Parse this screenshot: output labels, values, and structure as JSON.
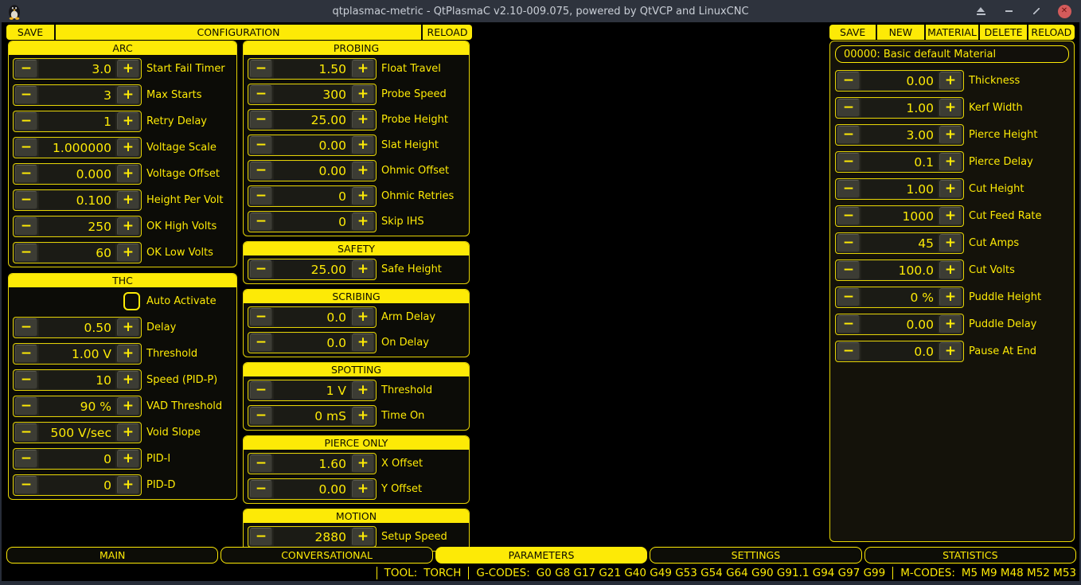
{
  "window": {
    "title": "qtplasmac-metric - QtPlasmaC v2.10-009.075, powered by QtVCP and LinuxCNC",
    "controls": [
      "shade",
      "minimize",
      "maximize",
      "close"
    ]
  },
  "colors": {
    "accent": "#fdea06",
    "titlebar": "#2e333d",
    "close_button": "#d35b5b",
    "background": "#000000"
  },
  "config_bar": {
    "save": "SAVE",
    "title": "CONFIGURATION",
    "reload": "RELOAD"
  },
  "material_bar": {
    "buttons": [
      "SAVE",
      "NEW",
      "MATERIAL",
      "DELETE",
      "RELOAD"
    ]
  },
  "materials": {
    "selected": "00000: Basic default Material",
    "fields": [
      {
        "value": "0.00",
        "label": "Thickness"
      },
      {
        "value": "1.00",
        "label": "Kerf Width"
      },
      {
        "value": "3.00",
        "label": "Pierce Height"
      },
      {
        "value": "0.1",
        "label": "Pierce Delay"
      },
      {
        "value": "1.00",
        "label": "Cut Height"
      },
      {
        "value": "1000",
        "label": "Cut Feed Rate"
      },
      {
        "value": "45",
        "label": "Cut Amps"
      },
      {
        "value": "100.0",
        "label": "Cut Volts"
      },
      {
        "value": "0 %",
        "label": "Puddle Height"
      },
      {
        "value": "0.00",
        "label": "Puddle Delay"
      },
      {
        "value": "0.0",
        "label": "Pause At End"
      }
    ]
  },
  "panels": {
    "left": [
      {
        "title": "ARC",
        "rows": [
          {
            "value": "3.0",
            "label": "Start Fail Timer"
          },
          {
            "value": "3",
            "label": "Max Starts"
          },
          {
            "value": "1",
            "label": "Retry Delay"
          },
          {
            "value": "1.000000",
            "label": "Voltage Scale"
          },
          {
            "value": "0.000",
            "label": "Voltage Offset"
          },
          {
            "value": "0.100",
            "label": "Height Per Volt"
          },
          {
            "value": "250",
            "label": "OK High Volts"
          },
          {
            "value": "60",
            "label": "OK Low Volts"
          }
        ]
      },
      {
        "title": "THC",
        "rows": [
          {
            "type": "checkbox",
            "checked": false,
            "label": "Auto Activate"
          },
          {
            "value": "0.50",
            "label": "Delay"
          },
          {
            "value": "1.00 V",
            "label": "Threshold"
          },
          {
            "value": "10",
            "label": "Speed (PID-P)"
          },
          {
            "value": "90 %",
            "label": "VAD Threshold"
          },
          {
            "value": "500 V/sec",
            "label": "Void Slope"
          },
          {
            "value": "0",
            "label": "PID-I"
          },
          {
            "value": "0",
            "label": "PID-D"
          }
        ]
      }
    ],
    "middle": [
      {
        "title": "PROBING",
        "rows": [
          {
            "value": "1.50",
            "label": "Float Travel"
          },
          {
            "value": "300",
            "label": "Probe Speed"
          },
          {
            "value": "25.00",
            "label": "Probe Height"
          },
          {
            "value": "0.00",
            "label": "Slat Height"
          },
          {
            "value": "0.00",
            "label": "Ohmic Offset"
          },
          {
            "value": "0",
            "label": "Ohmic Retries"
          },
          {
            "value": "0",
            "label": "Skip IHS"
          }
        ]
      },
      {
        "title": "SAFETY",
        "rows": [
          {
            "value": "25.00",
            "label": "Safe Height"
          }
        ]
      },
      {
        "title": "SCRIBING",
        "rows": [
          {
            "value": "0.0",
            "label": "Arm Delay"
          },
          {
            "value": "0.0",
            "label": "On Delay"
          }
        ]
      },
      {
        "title": "SPOTTING",
        "rows": [
          {
            "value": "1 V",
            "label": "Threshold"
          },
          {
            "value": "0 mS",
            "label": "Time On"
          }
        ]
      },
      {
        "title": "PIERCE ONLY",
        "rows": [
          {
            "value": "1.60",
            "label": "X Offset"
          },
          {
            "value": "0.00",
            "label": "Y Offset"
          }
        ]
      },
      {
        "title": "MOTION",
        "rows": [
          {
            "value": "2880",
            "label": "Setup Speed"
          }
        ]
      }
    ]
  },
  "tabs": [
    {
      "label": "MAIN",
      "active": false
    },
    {
      "label": "CONVERSATIONAL",
      "active": false
    },
    {
      "label": "PARAMETERS",
      "active": true
    },
    {
      "label": "SETTINGS",
      "active": false
    },
    {
      "label": "STATISTICS",
      "active": false
    }
  ],
  "statusbar": {
    "items": [
      {
        "label": "TOOL:",
        "value": "TORCH"
      },
      {
        "label": "G-CODES:",
        "value": "G0 G8 G17 G21 G40 G49 G53 G54 G64 G90 G91.1 G94 G97 G99"
      },
      {
        "label": "M-CODES:",
        "value": "M5 M9 M48 M52 M53"
      }
    ]
  }
}
